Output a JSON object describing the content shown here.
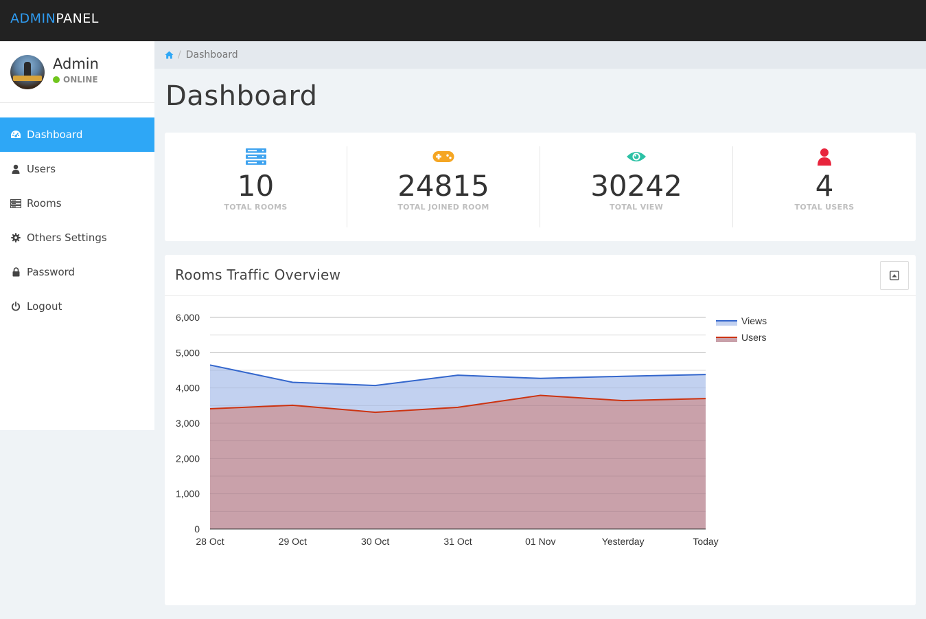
{
  "app": {
    "brand_part1": "ADMIN",
    "brand_part2": "PANEL",
    "colors": {
      "accent": "#2ea7f6",
      "topbar": "#222222",
      "online": "#70c51d"
    }
  },
  "user": {
    "name": "Admin",
    "status": "ONLINE"
  },
  "sidebar": {
    "items": [
      {
        "label": "Dashboard",
        "icon": "dashboard-icon",
        "active": true
      },
      {
        "label": "Users",
        "icon": "user-icon",
        "active": false
      },
      {
        "label": "Rooms",
        "icon": "server-icon",
        "active": false
      },
      {
        "label": "Others Settings",
        "icon": "gear-icon",
        "active": false
      },
      {
        "label": "Password",
        "icon": "lock-icon",
        "active": false
      },
      {
        "label": "Logout",
        "icon": "power-icon",
        "active": false
      }
    ]
  },
  "breadcrumb": {
    "home_icon": "home-icon",
    "current": "Dashboard"
  },
  "page": {
    "title": "Dashboard"
  },
  "stats": [
    {
      "value": "10",
      "label": "TOTAL ROOMS",
      "icon": "server-icon",
      "color": "#3fa3ef"
    },
    {
      "value": "24815",
      "label": "TOTAL JOINED ROOM",
      "icon": "gamepad-icon",
      "color": "#f5a623"
    },
    {
      "value": "30242",
      "label": "TOTAL VIEW",
      "icon": "eye-icon",
      "color": "#2cc1a5"
    },
    {
      "value": "4",
      "label": "TOTAL USERS",
      "icon": "user-icon",
      "color": "#e8253d"
    }
  ],
  "chart": {
    "title": "Rooms Traffic Overview",
    "collapse_icon": "collapse-icon"
  },
  "chart_data": {
    "type": "area",
    "categories": [
      "28 Oct",
      "29 Oct",
      "30 Oct",
      "31 Oct",
      "01 Nov",
      "Yesterday",
      "Today"
    ],
    "series": [
      {
        "name": "Views",
        "values": [
          4650,
          4160,
          4070,
          4360,
          4270,
          4330,
          4380
        ],
        "color": "#3366cc",
        "fill": "#c2d1f0"
      },
      {
        "name": "Users",
        "values": [
          3410,
          3510,
          3310,
          3450,
          3790,
          3640,
          3700
        ],
        "color": "#cc3311",
        "fill": "#c9a1aa"
      }
    ],
    "ylim": [
      0,
      6000
    ],
    "yticks": [
      0,
      1000,
      2000,
      3000,
      4000,
      5000,
      6000
    ],
    "ytick_labels": [
      "0",
      "1,000",
      "2,000",
      "3,000",
      "4,000",
      "5,000",
      "6,000"
    ],
    "grid": true,
    "legend": "right"
  }
}
